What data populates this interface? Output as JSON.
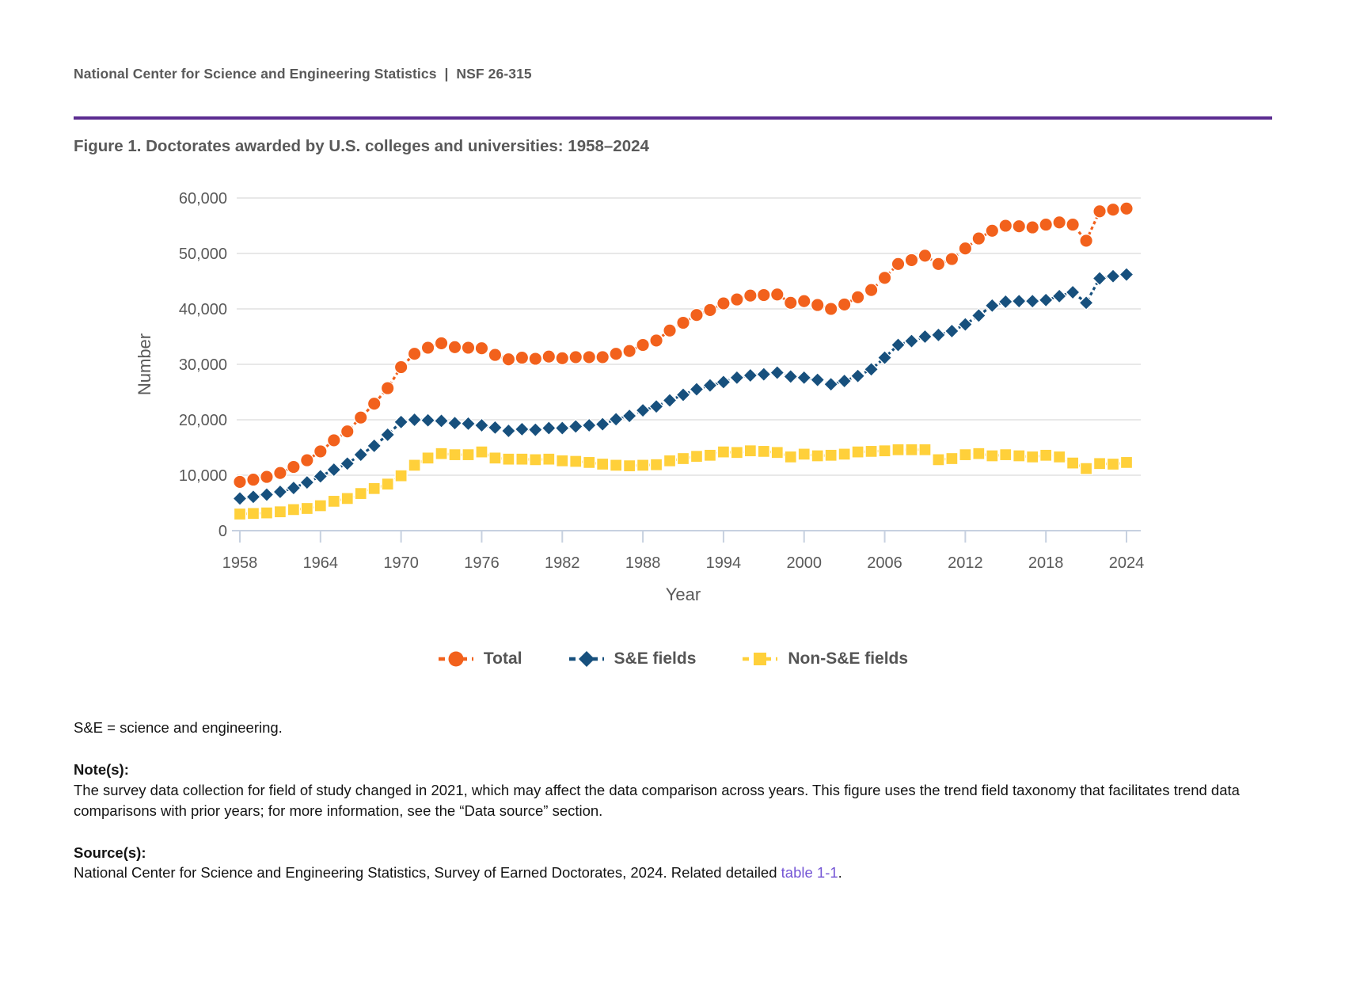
{
  "header": {
    "text": "National Center for Science and Engineering Statistics  |  NSF 26-315"
  },
  "figure": {
    "title": "Figure 1. Doctorates awarded by U.S. colleges and universities: 1958–2024"
  },
  "chart_data": {
    "type": "line",
    "title": "Doctorates awarded by U.S. colleges and universities: 1958–2024",
    "xlabel": "Year",
    "ylabel": "Number",
    "ylim": [
      0,
      60000
    ],
    "ytick_step": 10000,
    "grid": true,
    "legend_position": "bottom",
    "xticks": [
      1958,
      1964,
      1970,
      1976,
      1982,
      1988,
      1994,
      2000,
      2006,
      2012,
      2018,
      2024
    ],
    "x": [
      1958,
      1959,
      1960,
      1961,
      1962,
      1963,
      1964,
      1965,
      1966,
      1967,
      1968,
      1969,
      1970,
      1971,
      1972,
      1973,
      1974,
      1975,
      1976,
      1977,
      1978,
      1979,
      1980,
      1981,
      1982,
      1983,
      1984,
      1985,
      1986,
      1987,
      1988,
      1989,
      1990,
      1991,
      1992,
      1993,
      1994,
      1995,
      1996,
      1997,
      1998,
      1999,
      2000,
      2001,
      2002,
      2003,
      2004,
      2005,
      2006,
      2007,
      2008,
      2009,
      2010,
      2011,
      2012,
      2013,
      2014,
      2015,
      2016,
      2017,
      2018,
      2019,
      2020,
      2021,
      2022,
      2023,
      2024
    ],
    "series": [
      {
        "name": "Total",
        "marker": "circle",
        "color": "#F2611C",
        "values": [
          8800,
          9200,
          9700,
          10400,
          11500,
          12700,
          14300,
          16300,
          17900,
          20400,
          22900,
          25700,
          29500,
          31900,
          33000,
          33800,
          33100,
          33000,
          32900,
          31700,
          30900,
          31200,
          31000,
          31400,
          31100,
          31300,
          31300,
          31300,
          31900,
          32400,
          33500,
          34300,
          36100,
          37500,
          38900,
          39800,
          41000,
          41700,
          42400,
          42500,
          42600,
          41100,
          41400,
          40700,
          40000,
          40800,
          42100,
          43400,
          45600,
          48100,
          48800,
          49600,
          48100,
          49000,
          50900,
          52700,
          54100,
          55000,
          54900,
          54700,
          55200,
          55600,
          55200,
          52300,
          57600,
          57900,
          58100
        ]
      },
      {
        "name": "S&E fields",
        "marker": "diamond",
        "color": "#17507D",
        "values": [
          5800,
          6100,
          6500,
          7000,
          7700,
          8700,
          9800,
          11000,
          12100,
          13700,
          15300,
          17300,
          19600,
          20000,
          19900,
          19800,
          19400,
          19300,
          19000,
          18600,
          18000,
          18300,
          18200,
          18500,
          18500,
          18800,
          19000,
          19200,
          20100,
          20700,
          21700,
          22400,
          23500,
          24500,
          25500,
          26200,
          26800,
          27600,
          28000,
          28200,
          28500,
          27800,
          27600,
          27200,
          26400,
          27000,
          27900,
          29100,
          31200,
          33500,
          34200,
          35000,
          35300,
          36000,
          37200,
          38800,
          40600,
          41300,
          41400,
          41400,
          41600,
          42300,
          43000,
          41100,
          45500,
          45900,
          46200
        ]
      },
      {
        "name": "Non-S&E fields",
        "marker": "square",
        "color": "#FFD03A",
        "values": [
          3000,
          3100,
          3200,
          3400,
          3800,
          4000,
          4500,
          5300,
          5800,
          6700,
          7600,
          8400,
          9900,
          11800,
          13100,
          13900,
          13700,
          13700,
          14200,
          13100,
          12900,
          12900,
          12800,
          12900,
          12600,
          12500,
          12300,
          12000,
          11800,
          11700,
          11800,
          11900,
          12600,
          13000,
          13400,
          13600,
          14200,
          14100,
          14400,
          14300,
          14100,
          13300,
          13800,
          13500,
          13600,
          13800,
          14200,
          14300,
          14400,
          14600,
          14600,
          14600,
          12800,
          13000,
          13700,
          13900,
          13500,
          13700,
          13500,
          13300,
          13600,
          13300,
          12200,
          11200,
          12100,
          12000,
          12300
        ]
      }
    ]
  },
  "style_colors": {
    "grid": "#E0E0E0",
    "axis": "#C7D1E0",
    "tick_label": "#595959",
    "axis_title": "#595959",
    "rule": "#5C2D91",
    "link": "#7455D5"
  },
  "notes": {
    "abbreviation": "S&E = science and engineering.",
    "notes_heading": "Note(s):",
    "notes_text": "The survey data collection for field of study changed in 2021, which may affect the data comparison across years. This figure uses the trend field taxonomy that facilitates trend data comparisons with prior years; for more information, see the “Data source” section.",
    "source_heading": "Source(s):",
    "source_prefix": "National Center for Science and Engineering Statistics, Survey of Earned Doctorates, 2024. Related detailed ",
    "source_link": "table 1-1",
    "source_suffix": "."
  }
}
